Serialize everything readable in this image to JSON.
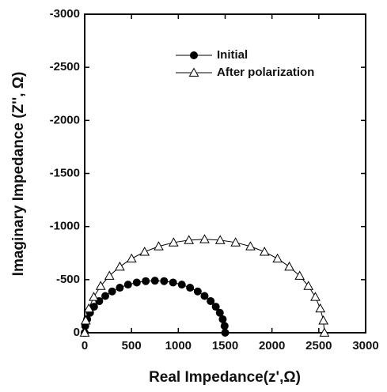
{
  "chart_data": {
    "type": "line",
    "xlabel": "Real Impedance(z',Ω)",
    "ylabel": "Imaginary Impedance (Z'', Ω)",
    "xlim": [
      0,
      3000
    ],
    "xticks": [
      0,
      500,
      1000,
      1500,
      2000,
      2500,
      3000
    ],
    "ylim": [
      0,
      -3000
    ],
    "yticks": [
      0,
      -500,
      -1000,
      -1500,
      -2000,
      -2500,
      -3000
    ],
    "legend": "upper center",
    "series": [
      {
        "name": "Initial",
        "color": "#000000",
        "marker": "circle",
        "x": [
          0,
          6,
          26,
          57,
          100,
          155,
          220,
          293,
          375,
          463,
          556,
          652,
          750,
          848,
          944,
          1037,
          1125,
          1207,
          1280,
          1345,
          1400,
          1443,
          1474,
          1494,
          1500
        ],
        "values": [
          0,
          -64,
          -127,
          -188,
          -245,
          -298,
          -346,
          -389,
          -424,
          -453,
          -473,
          -486,
          -490,
          -486,
          -473,
          -453,
          -424,
          -389,
          -346,
          -298,
          -245,
          -188,
          -127,
          -64,
          0
        ]
      },
      {
        "name": "After polarization",
        "color": "#000000",
        "marker": "triangle",
        "x": [
          0,
          11,
          44,
          97,
          171,
          264,
          375,
          501,
          640,
          790,
          949,
          1113,
          1280,
          1447,
          1611,
          1770,
          1920,
          2059,
          2185,
          2296,
          2389,
          2463,
          2516,
          2549,
          2560
        ],
        "values": [
          0,
          -115,
          -228,
          -337,
          -440,
          -536,
          -622,
          -698,
          -762,
          -813,
          -850,
          -872,
          -880,
          -872,
          -850,
          -813,
          -762,
          -698,
          -622,
          -536,
          -440,
          -337,
          -228,
          -115,
          0
        ]
      }
    ]
  }
}
